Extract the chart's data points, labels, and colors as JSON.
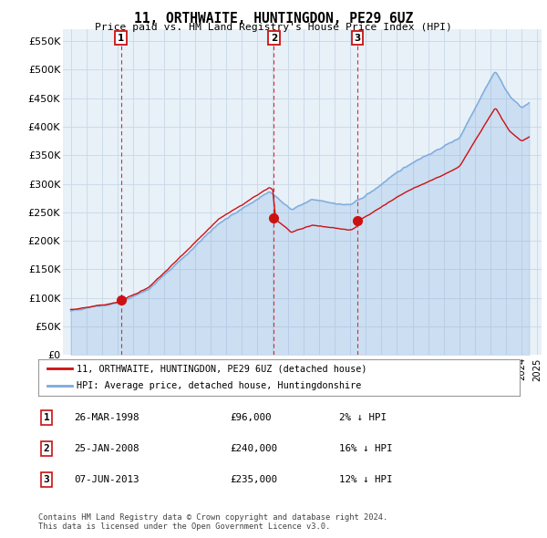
{
  "title": "11, ORTHWAITE, HUNTINGDON, PE29 6UZ",
  "subtitle": "Price paid vs. HM Land Registry's House Price Index (HPI)",
  "hpi_color": "#7aaadd",
  "hpi_fill": "#ddeeff",
  "price_color": "#cc1111",
  "grid_color": "#c8d8e8",
  "bg_color": "#ffffff",
  "plot_bg_color": "#e8f0f8",
  "legend_items": [
    {
      "label": "11, ORTHWAITE, HUNTINGDON, PE29 6UZ (detached house)",
      "color": "#cc1111"
    },
    {
      "label": "HPI: Average price, detached house, Huntingdonshire",
      "color": "#7aaadd"
    }
  ],
  "transactions": [
    {
      "num": 1,
      "date": "26-MAR-1998",
      "price": 96000,
      "pct": "2%",
      "direction": "↓",
      "year": 1998.23
    },
    {
      "num": 2,
      "date": "25-JAN-2008",
      "price": 240000,
      "pct": "16%",
      "direction": "↓",
      "year": 2008.07
    },
    {
      "num": 3,
      "date": "07-JUN-2013",
      "price": 235000,
      "pct": "12%",
      "direction": "↓",
      "year": 2013.44
    }
  ],
  "footer": "Contains HM Land Registry data © Crown copyright and database right 2024.\nThis data is licensed under the Open Government Licence v3.0.",
  "xmin": 1995,
  "xmax": 2025,
  "ylim": [
    0,
    570000
  ],
  "yticks": [
    0,
    50000,
    100000,
    150000,
    200000,
    250000,
    300000,
    350000,
    400000,
    450000,
    500000,
    550000
  ],
  "ytick_labels": [
    "£0",
    "£50K",
    "£100K",
    "£150K",
    "£200K",
    "£250K",
    "£300K",
    "£350K",
    "£400K",
    "£450K",
    "£500K",
    "£550K"
  ]
}
